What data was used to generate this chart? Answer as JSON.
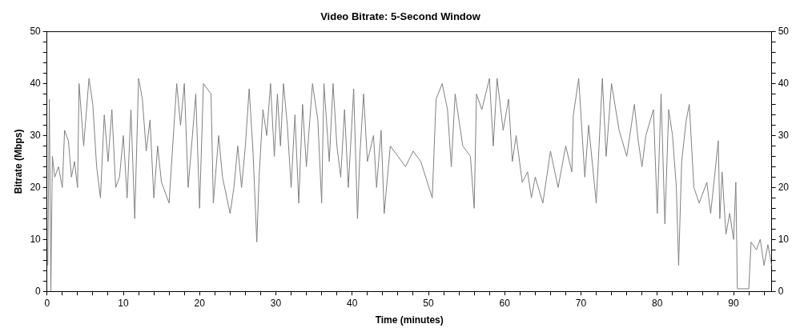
{
  "chart_data": {
    "type": "line",
    "title": "Video Bitrate: 5-Second Window",
    "xlabel": "Time (minutes)",
    "ylabel": "Bitrate (Mbps)",
    "marker": "none",
    "grid": false,
    "legend": false,
    "xlim": [
      0,
      95
    ],
    "xticks": [
      0,
      {
        "value": 2,
        "label": null
      },
      {
        "value": 4,
        "label": null
      },
      {
        "value": 6,
        "label": null
      },
      {
        "value": 8,
        "label": null
      },
      10,
      {
        "value": 12,
        "label": null
      },
      {
        "value": 14,
        "label": null
      },
      {
        "value": 16,
        "label": null
      },
      {
        "value": 18,
        "label": null
      },
      20,
      {
        "value": 22,
        "label": null
      },
      {
        "value": 24,
        "label": null
      },
      {
        "value": 26,
        "label": null
      },
      {
        "value": 28,
        "label": null
      },
      30,
      {
        "value": 32,
        "label": null
      },
      {
        "value": 34,
        "label": null
      },
      {
        "value": 36,
        "label": null
      },
      {
        "value": 38,
        "label": null
      },
      40,
      {
        "value": 42,
        "label": null
      },
      {
        "value": 44,
        "label": null
      },
      {
        "value": 46,
        "label": null
      },
      {
        "value": 48,
        "label": null
      },
      50,
      {
        "value": 52,
        "label": null
      },
      {
        "value": 54,
        "label": null
      },
      {
        "value": 56,
        "label": null
      },
      {
        "value": 58,
        "label": null
      },
      60,
      {
        "value": 62,
        "label": null
      },
      {
        "value": 64,
        "label": null
      },
      {
        "value": 66,
        "label": null
      },
      {
        "value": 68,
        "label": null
      },
      70,
      {
        "value": 72,
        "label": null
      },
      {
        "value": 74,
        "label": null
      },
      {
        "value": 76,
        "label": null
      },
      {
        "value": 78,
        "label": null
      },
      80,
      {
        "value": 82,
        "label": null
      },
      {
        "value": 84,
        "label": null
      },
      {
        "value": 86,
        "label": null
      },
      {
        "value": 88,
        "label": null
      },
      90,
      {
        "value": 92,
        "label": null
      },
      {
        "value": 94,
        "label": null
      }
    ],
    "ylim": [
      0,
      50
    ],
    "yticks": [
      0,
      {
        "value": 2,
        "label": null
      },
      {
        "value": 4,
        "label": null
      },
      {
        "value": 6,
        "label": null
      },
      {
        "value": 8,
        "label": null
      },
      10,
      {
        "value": 12,
        "label": null
      },
      {
        "value": 14,
        "label": null
      },
      {
        "value": 16,
        "label": null
      },
      {
        "value": 18,
        "label": null
      },
      20,
      {
        "value": 22,
        "label": null
      },
      {
        "value": 24,
        "label": null
      },
      {
        "value": 26,
        "label": null
      },
      {
        "value": 28,
        "label": null
      },
      30,
      {
        "value": 32,
        "label": null
      },
      {
        "value": 34,
        "label": null
      },
      {
        "value": 36,
        "label": null
      },
      {
        "value": 38,
        "label": null
      },
      40,
      {
        "value": 42,
        "label": null
      },
      {
        "value": 44,
        "label": null
      },
      {
        "value": 46,
        "label": null
      },
      {
        "value": 48,
        "label": null
      },
      50
    ],
    "y2lim": [
      0,
      50
    ],
    "y2ticks": [
      0,
      {
        "value": 2,
        "label": null
      },
      {
        "value": 4,
        "label": null
      },
      {
        "value": 6,
        "label": null
      },
      {
        "value": 8,
        "label": null
      },
      10,
      {
        "value": 12,
        "label": null
      },
      {
        "value": 14,
        "label": null
      },
      {
        "value": 16,
        "label": null
      },
      {
        "value": 18,
        "label": null
      },
      20,
      {
        "value": 22,
        "label": null
      },
      {
        "value": 24,
        "label": null
      },
      {
        "value": 26,
        "label": null
      },
      {
        "value": 28,
        "label": null
      },
      30,
      {
        "value": 32,
        "label": null
      },
      {
        "value": 34,
        "label": null
      },
      {
        "value": 36,
        "label": null
      },
      {
        "value": 38,
        "label": null
      },
      40,
      {
        "value": 42,
        "label": null
      },
      {
        "value": 44,
        "label": null
      },
      {
        "value": 46,
        "label": null
      },
      {
        "value": 48,
        "label": null
      },
      50
    ],
    "x": [
      0.1,
      0.3,
      0.5,
      0.7,
      1,
      1.5,
      2,
      2.3,
      2.8,
      3.2,
      3.6,
      4,
      4.2,
      4.8,
      5.5,
      6,
      6.5,
      7,
      7.5,
      8,
      8.5,
      9,
      9.5,
      10,
      10.5,
      11,
      11.5,
      12,
      12.5,
      13,
      13.5,
      14,
      14.5,
      15,
      16,
      16.3,
      17,
      17.5,
      18,
      18.5,
      19,
      19.5,
      20,
      20.5,
      21.5,
      21.8,
      22.5,
      23,
      24,
      24.5,
      25,
      25.5,
      26,
      26.5,
      27,
      27.5,
      27.8,
      28.3,
      28.8,
      29.3,
      29.8,
      30.2,
      30.6,
      31,
      31.5,
      32,
      32.5,
      33,
      33.5,
      34,
      34.8,
      35.5,
      36,
      36.3,
      37,
      37.5,
      38,
      38.5,
      39,
      39.5,
      40.2,
      40.7,
      41,
      41.5,
      42,
      42.8,
      43.2,
      43.8,
      44.2,
      45,
      46,
      47,
      48,
      49,
      50.5,
      51,
      51.8,
      52.5,
      53,
      53.5,
      54.5,
      55.5,
      56,
      56.3,
      57,
      58,
      58.5,
      59,
      59.8,
      60.5,
      61,
      61.5,
      62.3,
      63,
      63.5,
      64,
      65,
      66,
      67,
      68,
      68.8,
      69,
      69.7,
      70.5,
      71,
      72,
      72.8,
      73.3,
      74,
      75,
      76,
      77,
      77.5,
      78,
      78.5,
      79.5,
      80,
      80.5,
      81,
      81.5,
      82,
      82.5,
      82.8,
      83.2,
      83.8,
      84.2,
      84.8,
      85.5,
      86.5,
      87,
      87.5,
      88,
      88.2,
      88.5,
      89,
      89.5,
      90,
      90.3,
      90.5,
      92,
      92.3,
      93,
      93.5,
      94,
      94.5,
      95
    ],
    "series": [
      {
        "color": "#808080",
        "values": [
          5,
          37,
          0,
          26,
          22,
          24,
          20,
          31,
          29,
          22,
          25,
          20,
          40,
          28,
          41,
          36,
          24,
          18,
          34,
          25,
          35,
          20,
          22,
          30,
          18,
          35,
          14,
          41,
          37,
          27,
          33,
          18,
          28,
          21,
          17,
          24,
          40,
          32,
          40,
          20,
          29,
          38,
          16,
          40,
          38,
          17,
          30,
          22,
          15,
          20,
          28,
          20,
          28,
          39,
          27,
          9.5,
          22,
          35,
          30,
          40,
          26,
          38,
          28,
          40,
          32,
          20,
          34,
          17,
          36,
          24,
          40,
          33,
          17,
          40,
          25,
          40,
          28,
          22,
          35,
          20,
          39,
          14,
          26,
          38,
          25,
          30,
          20,
          31,
          15,
          28,
          26,
          24,
          27,
          25,
          18,
          37,
          40,
          35,
          24,
          38,
          28,
          26,
          16,
          38,
          35,
          41,
          28,
          41,
          31,
          37,
          25,
          30,
          21,
          23,
          18,
          22,
          17,
          27,
          20,
          28,
          23,
          34,
          41,
          22,
          32,
          17,
          41,
          26,
          40,
          31,
          26,
          36,
          29,
          24,
          30,
          35,
          15,
          38,
          13,
          35,
          30,
          20,
          5,
          25,
          33,
          36,
          20,
          17,
          21,
          15,
          22,
          29,
          14,
          23,
          11,
          15,
          10,
          21,
          0.5,
          0.5,
          9.5,
          8,
          10,
          5,
          9,
          5
        ]
      }
    ]
  }
}
